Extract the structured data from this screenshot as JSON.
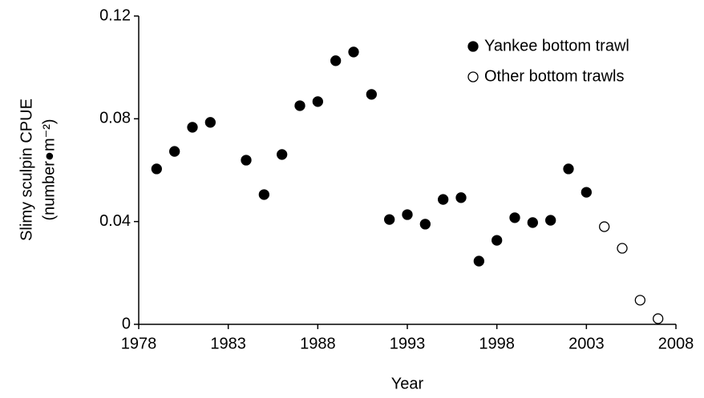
{
  "chart_data": {
    "type": "scatter",
    "xlabel": "Year",
    "ylabel": [
      "Slimy sculpin CPUE",
      "(number●m⁻²)"
    ],
    "xlim": [
      1978,
      2008
    ],
    "xticks": [
      1978,
      1983,
      1988,
      1993,
      1998,
      2003,
      2008
    ],
    "ylim": [
      0,
      0.12
    ],
    "yticks": [
      0,
      0.04,
      0.08,
      0.12
    ],
    "legend": "upper right",
    "series": [
      {
        "name": "Yankee bottom trawl",
        "color": "#000000",
        "marker": "filled",
        "x": [
          1979,
          1980,
          1981,
          1982,
          1984,
          1985,
          1986,
          1987,
          1988,
          1989,
          1990,
          1991,
          1992,
          1993,
          1994,
          1995,
          1996,
          1997,
          1998,
          1999,
          2000,
          2001,
          2002,
          2003
        ],
        "values": [
          0.0605,
          0.0673,
          0.0767,
          0.0786,
          0.0639,
          0.0505,
          0.0661,
          0.0851,
          0.0867,
          0.1026,
          0.106,
          0.0895,
          0.0408,
          0.0427,
          0.039,
          0.0486,
          0.0493,
          0.0246,
          0.0327,
          0.0415,
          0.0396,
          0.0405,
          0.0605,
          0.0514
        ]
      },
      {
        "name": "Other bottom trawls",
        "color": "#000000",
        "marker": "open",
        "x": [
          2004,
          2005,
          2006,
          2007
        ],
        "values": [
          0.038,
          0.0296,
          0.0094,
          0.0022
        ]
      }
    ]
  }
}
